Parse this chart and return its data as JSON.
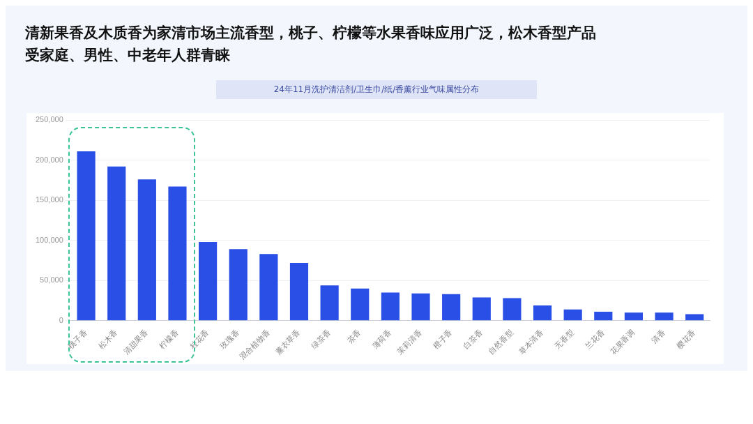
{
  "chart_data": {
    "type": "bar",
    "title": "清新果香及木质香为家清市场主流香型，桃子、柠檬等水果香味应用广泛，松木香型产品受家庭、男性、中老年人群青睐",
    "subtitle": "24年11月洗护清洁剂/卫生巾/纸/香薰行业气味属性分布",
    "categories": [
      "桃子香",
      "松木香",
      "清甜果香",
      "柠檬香",
      "桂花香",
      "玫瑰香",
      "混合植物香",
      "薰衣草香",
      "绿茶香",
      "茶香",
      "薄荷香",
      "茉莉清香",
      "橙子香",
      "白茶香",
      "自然香型",
      "草本清香",
      "无香型",
      "兰花香",
      "花果香调",
      "清香",
      "樱花香"
    ],
    "values": [
      211000,
      192000,
      176000,
      167000,
      98000,
      89000,
      83000,
      72000,
      44000,
      40000,
      35000,
      34000,
      33000,
      29000,
      28000,
      19000,
      14000,
      11000,
      10000,
      10000,
      8000
    ],
    "color": "#2a4fe6",
    "ylim": [
      0,
      250000
    ],
    "yticks": [
      0,
      {
        "value": 50000,
        "label": "50,000"
      },
      {
        "value": 100000,
        "label": "100,000"
      },
      {
        "value": 150000,
        "label": "150,000"
      },
      {
        "value": 200000,
        "label": "200,000"
      },
      {
        "value": 250000,
        "label": "250,000"
      }
    ],
    "grid": "y"
  }
}
